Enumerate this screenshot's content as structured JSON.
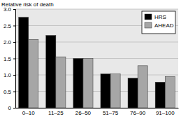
{
  "chart_data": {
    "type": "bar",
    "ylabel": "Relative risk of death",
    "categories": [
      "0–10",
      "11–25",
      "26–50",
      "51–75",
      "76–90",
      "91–100"
    ],
    "series": [
      {
        "name": "HRS",
        "color": "#000000",
        "values": [
          2.75,
          2.2,
          1.5,
          1.03,
          0.9,
          0.78
        ]
      },
      {
        "name": "AHEAD",
        "color": "#a6a6a6",
        "values": [
          2.08,
          1.55,
          1.5,
          1.03,
          1.28,
          0.95
        ]
      }
    ],
    "ylim": [
      0,
      3
    ],
    "yticks": [
      0,
      0.5,
      {
        "value": 1,
        "label": "1.0"
      },
      1.5,
      {
        "value": 2,
        "label": "2.0"
      },
      2.5,
      {
        "value": 3,
        "label": "3.0"
      }
    ],
    "grid": true,
    "legend": "upper right"
  }
}
